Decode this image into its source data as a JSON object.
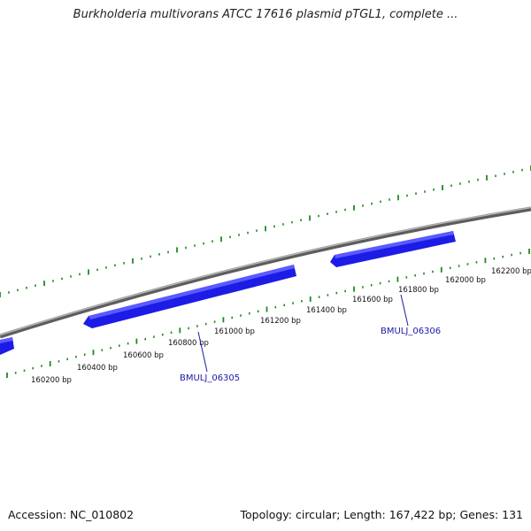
{
  "title": "Burkholderia multivorans ATCC 17616 plasmid pTGL1, complete ...",
  "footer": {
    "accession": "Accession: NC_010802",
    "summary": "Topology: circular; Length: 167,422 bp; Genes: 131"
  },
  "colors": {
    "backbone": "#8a8a8a",
    "gene_fill": "#1c1ce6",
    "gene_highlight": "#5a5aff",
    "tick": "#1f8a1f",
    "gene_label": "#1a1aa8"
  },
  "tick_labels": [
    "160200 bp",
    "160400 bp",
    "160600 bp",
    "160800 bp",
    "161000 bp",
    "161200 bp",
    "161400 bp",
    "161600 bp",
    "161800 bp",
    "162000 bp",
    "162200 bp"
  ],
  "genes": [
    {
      "name": "BMULJ_06305"
    },
    {
      "name": "BMULJ_06306"
    }
  ]
}
